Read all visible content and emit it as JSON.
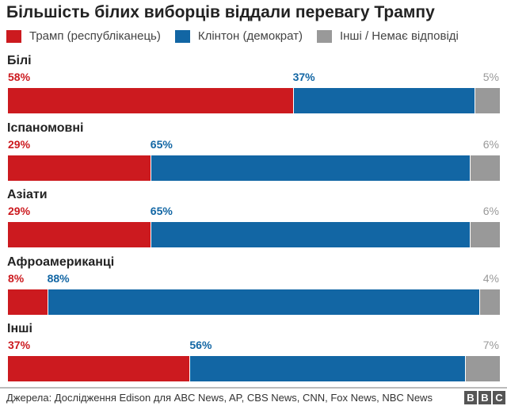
{
  "chart_data": {
    "type": "bar",
    "stacked": true,
    "orientation": "horizontal",
    "title": "Більшість білих виборців віддали перевагу Трампу",
    "categories": [
      "Білі",
      "Іспаномовні",
      "Азіати",
      "Афроамериканці",
      "Інші"
    ],
    "series": [
      {
        "name": "Трамп (республіканець)",
        "color": "#cc1a1f",
        "values": [
          58,
          29,
          29,
          8,
          37
        ]
      },
      {
        "name": "Клінтон (демократ)",
        "color": "#1266a4",
        "values": [
          37,
          65,
          65,
          88,
          56
        ]
      },
      {
        "name": "Інші / Немає відповіді",
        "color": "#999999",
        "values": [
          5,
          6,
          6,
          4,
          7
        ]
      }
    ],
    "value_suffix": "%",
    "legend_position": "top-left",
    "xlim": [
      0,
      100
    ]
  },
  "source": "Джерела: Дослідження Edison для ABC News, AP, CBS News, CNN, Fox News, NBC News",
  "logo": [
    "B",
    "B",
    "C"
  ]
}
